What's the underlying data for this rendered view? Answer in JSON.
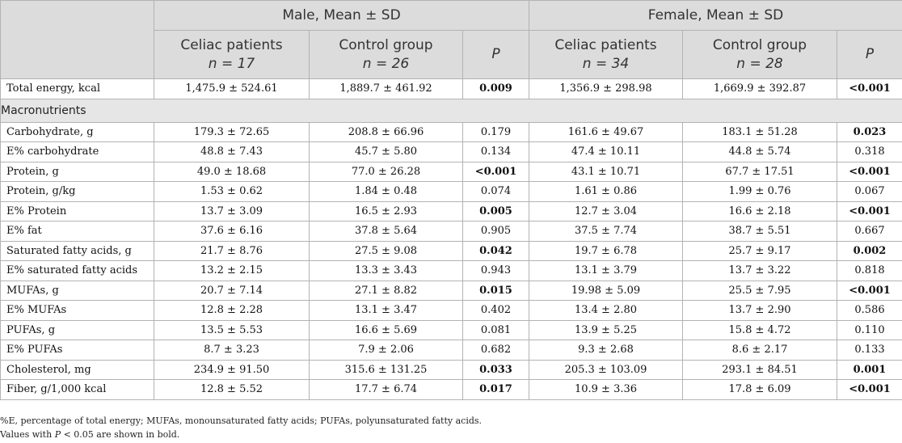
{
  "header": {
    "male_group": "Male, Mean ± SD",
    "female_group": "Female, Mean ± SD",
    "celiac": "Celiac patients",
    "control": "Control group",
    "p": "P",
    "n_male_celiac": "n = 17",
    "n_male_control": "n = 26",
    "n_female_celiac": "n = 34",
    "n_female_control": "n = 28"
  },
  "total_energy": {
    "label": "Total energy, kcal",
    "cells": [
      {
        "v": "1,475.9 ± 524.61",
        "bold": false
      },
      {
        "v": "1,889.7 ± 461.92",
        "bold": false
      },
      {
        "v": "0.009",
        "bold": true
      },
      {
        "v": "1,356.9 ± 298.98",
        "bold": false
      },
      {
        "v": "1,669.9 ± 392.87",
        "bold": false
      },
      {
        "v": "<0.001",
        "bold": true
      }
    ]
  },
  "section_label": "Macronutrients",
  "rows": [
    {
      "label": "Carbohydrate, g",
      "cells": [
        {
          "v": "179.3 ± 72.65",
          "bold": false
        },
        {
          "v": "208.8 ± 66.96",
          "bold": false
        },
        {
          "v": "0.179",
          "bold": false
        },
        {
          "v": "161.6 ± 49.67",
          "bold": false
        },
        {
          "v": "183.1 ± 51.28",
          "bold": false
        },
        {
          "v": "0.023",
          "bold": true
        }
      ]
    },
    {
      "label": "E% carbohydrate",
      "cells": [
        {
          "v": "48.8 ± 7.43",
          "bold": false
        },
        {
          "v": "45.7 ± 5.80",
          "bold": false
        },
        {
          "v": "0.134",
          "bold": false
        },
        {
          "v": "47.4 ± 10.11",
          "bold": false
        },
        {
          "v": "44.8 ± 5.74",
          "bold": false
        },
        {
          "v": "0.318",
          "bold": false
        }
      ]
    },
    {
      "label": "Protein, g",
      "cells": [
        {
          "v": "49.0 ± 18.68",
          "bold": false
        },
        {
          "v": "77.0 ± 26.28",
          "bold": false
        },
        {
          "v": "<0.001",
          "bold": true
        },
        {
          "v": "43.1 ± 10.71",
          "bold": false
        },
        {
          "v": "67.7 ± 17.51",
          "bold": false
        },
        {
          "v": "<0.001",
          "bold": true
        }
      ]
    },
    {
      "label": "Protein, g/kg",
      "cells": [
        {
          "v": "1.53 ± 0.62",
          "bold": false
        },
        {
          "v": "1.84 ± 0.48",
          "bold": false
        },
        {
          "v": "0.074",
          "bold": false
        },
        {
          "v": "1.61 ± 0.86",
          "bold": false
        },
        {
          "v": "1.99 ± 0.76",
          "bold": false
        },
        {
          "v": "0.067",
          "bold": false
        }
      ]
    },
    {
      "label": "E% Protein",
      "cells": [
        {
          "v": "13.7 ± 3.09",
          "bold": false
        },
        {
          "v": "16.5 ± 2.93",
          "bold": false
        },
        {
          "v": "0.005",
          "bold": true
        },
        {
          "v": "12.7 ± 3.04",
          "bold": false
        },
        {
          "v": "16.6 ± 2.18",
          "bold": false
        },
        {
          "v": "<0.001",
          "bold": true
        }
      ]
    },
    {
      "label": "E% fat",
      "cells": [
        {
          "v": "37.6 ± 6.16",
          "bold": false
        },
        {
          "v": "37.8 ± 5.64",
          "bold": false
        },
        {
          "v": "0.905",
          "bold": false
        },
        {
          "v": "37.5 ± 7.74",
          "bold": false
        },
        {
          "v": "38.7 ± 5.51",
          "bold": false
        },
        {
          "v": "0.667",
          "bold": false
        }
      ]
    },
    {
      "label": "Saturated fatty acids, g",
      "cells": [
        {
          "v": "21.7 ± 8.76",
          "bold": false
        },
        {
          "v": "27.5 ± 9.08",
          "bold": false
        },
        {
          "v": "0.042",
          "bold": true
        },
        {
          "v": "19.7 ± 6.78",
          "bold": false
        },
        {
          "v": "25.7 ± 9.17",
          "bold": false
        },
        {
          "v": "0.002",
          "bold": true
        }
      ]
    },
    {
      "label": "E% saturated fatty acids",
      "cells": [
        {
          "v": "13.2 ± 2.15",
          "bold": false
        },
        {
          "v": "13.3 ± 3.43",
          "bold": false
        },
        {
          "v": "0.943",
          "bold": false
        },
        {
          "v": "13.1 ± 3.79",
          "bold": false
        },
        {
          "v": "13.7 ± 3.22",
          "bold": false
        },
        {
          "v": "0.818",
          "bold": false
        }
      ]
    },
    {
      "label": "MUFAs, g",
      "cells": [
        {
          "v": "20.7 ± 7.14",
          "bold": false
        },
        {
          "v": "27.1 ± 8.82",
          "bold": false
        },
        {
          "v": "0.015",
          "bold": true
        },
        {
          "v": "19.98 ± 5.09",
          "bold": false
        },
        {
          "v": "25.5 ± 7.95",
          "bold": false
        },
        {
          "v": "<0.001",
          "bold": true
        }
      ]
    },
    {
      "label": "E% MUFAs",
      "cells": [
        {
          "v": "12.8 ± 2.28",
          "bold": false
        },
        {
          "v": "13.1 ± 3.47",
          "bold": false
        },
        {
          "v": "0.402",
          "bold": false
        },
        {
          "v": "13.4 ± 2.80",
          "bold": false
        },
        {
          "v": "13.7 ± 2.90",
          "bold": false
        },
        {
          "v": "0.586",
          "bold": false
        }
      ]
    },
    {
      "label": "PUFAs, g",
      "cells": [
        {
          "v": "13.5 ± 5.53",
          "bold": false
        },
        {
          "v": "16.6 ± 5.69",
          "bold": false
        },
        {
          "v": "0.081",
          "bold": false
        },
        {
          "v": "13.9 ± 5.25",
          "bold": false
        },
        {
          "v": "15.8 ± 4.72",
          "bold": false
        },
        {
          "v": "0.110",
          "bold": false
        }
      ]
    },
    {
      "label": "E% PUFAs",
      "cells": [
        {
          "v": "8.7 ± 3.23",
          "bold": false
        },
        {
          "v": "7.9 ± 2.06",
          "bold": false
        },
        {
          "v": "0.682",
          "bold": false
        },
        {
          "v": "9.3 ± 2.68",
          "bold": false
        },
        {
          "v": "8.6 ± 2.17",
          "bold": false
        },
        {
          "v": "0.133",
          "bold": false
        }
      ]
    },
    {
      "label": "Cholesterol, mg",
      "cells": [
        {
          "v": "234.9 ± 91.50",
          "bold": false
        },
        {
          "v": "315.6 ± 131.25",
          "bold": false
        },
        {
          "v": "0.033",
          "bold": true
        },
        {
          "v": "205.3 ± 103.09",
          "bold": false
        },
        {
          "v": "293.1 ± 84.51",
          "bold": false
        },
        {
          "v": "0.001",
          "bold": true
        }
      ]
    },
    {
      "label": "Fiber, g/1,000 kcal",
      "cells": [
        {
          "v": "12.8 ± 5.52",
          "bold": false
        },
        {
          "v": "17.7 ± 6.74",
          "bold": false
        },
        {
          "v": "0.017",
          "bold": true
        },
        {
          "v": "10.9 ± 3.36",
          "bold": false
        },
        {
          "v": "17.8 ± 6.09",
          "bold": false
        },
        {
          "v": "<0.001",
          "bold": true
        }
      ]
    }
  ],
  "footnotes": {
    "line1": "%E, percentage of total energy; MUFAs, monounsaturated fatty acids; PUFAs, polyunsaturated fatty acids.",
    "line2_pre": "Values with ",
    "line2_p": "P",
    "line2_post": " < 0.05 are shown in bold."
  }
}
